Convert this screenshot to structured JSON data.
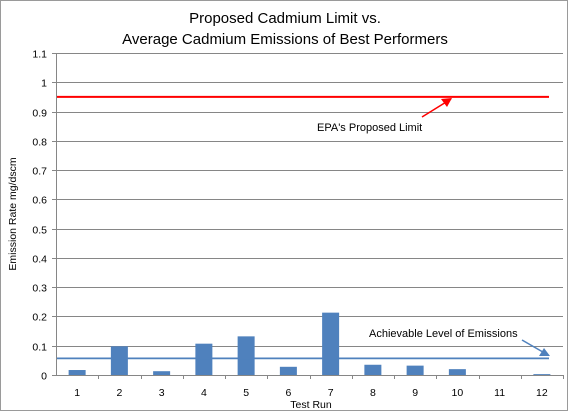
{
  "chart_data": {
    "type": "bar",
    "title_line1": "Proposed Cadmium Limit vs.",
    "title_line2": "Average Cadmium Emissions of Best Performers",
    "xlabel": "Test Run",
    "ylabel": "Emission Rate mg/dscm",
    "ylim": [
      0,
      1.1
    ],
    "yticks": [
      "0",
      "0.1",
      "0.2",
      "0.3",
      "0.4",
      "0.5",
      "0.6",
      "0.7",
      "0.8",
      "0.9",
      "1",
      "1.1"
    ],
    "categories": [
      "1",
      "2",
      "3",
      "4",
      "5",
      "6",
      "7",
      "8",
      "9",
      "10",
      "11",
      "12"
    ],
    "values": [
      0.017,
      0.098,
      0.013,
      0.107,
      0.132,
      0.028,
      0.213,
      0.035,
      0.032,
      0.02,
      0,
      0.003
    ],
    "bar_color": "#4f81bd",
    "reference_lines": [
      {
        "value": 0.95,
        "color": "#ff0000",
        "label": "EPA's Proposed Limit"
      },
      {
        "value": 0.057,
        "color": "#4f81bd",
        "label": "Achievable Level of Emissions"
      }
    ],
    "grid": true,
    "legend": "none"
  }
}
